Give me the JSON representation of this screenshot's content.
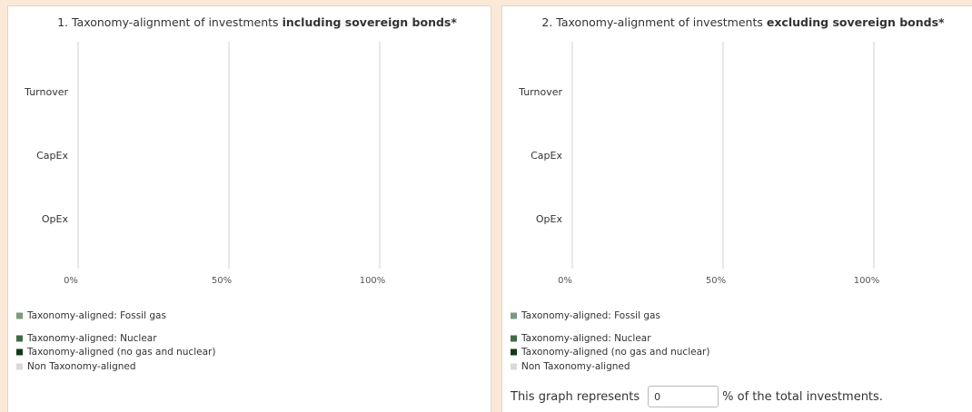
{
  "chart_data": [
    {
      "type": "bar",
      "orientation": "horizontal",
      "stacked": true,
      "title": [
        "1. Taxonomy-alignment of investments",
        "including sovereign bonds*"
      ],
      "categories": [
        "Turnover",
        "CapEx",
        "OpEx"
      ],
      "series": [
        {
          "name": "Taxonomy-aligned: Fossil gas",
          "color": "#7b9b7f",
          "values": [
            null,
            null,
            null
          ]
        },
        {
          "name": "Taxonomy-aligned: Nuclear",
          "color": "#3f6c45",
          "values": [
            null,
            null,
            null
          ]
        },
        {
          "name": "Taxonomy-aligned (no gas and nuclear)",
          "color": "#0f3b16",
          "values": [
            null,
            null,
            null
          ]
        },
        {
          "name": "Non Taxonomy-aligned",
          "color": "#d9d9d9",
          "values": [
            null,
            null,
            null
          ]
        }
      ],
      "xlim": [
        0,
        100
      ],
      "xticks": [
        {
          "value": 0,
          "label": "0%"
        },
        {
          "value": 50,
          "label": "50%"
        },
        {
          "value": 100,
          "label": "100%"
        }
      ],
      "grid": true
    },
    {
      "type": "bar",
      "orientation": "horizontal",
      "stacked": true,
      "title": [
        "2. Taxonomy-alignment of investments",
        "excluding sovereign bonds*"
      ],
      "categories": [
        "Turnover",
        "CapEx",
        "OpEx"
      ],
      "series": [
        {
          "name": "Taxonomy-aligned: Fossil gas",
          "color": "#7b9b7f",
          "values": [
            null,
            null,
            null
          ]
        },
        {
          "name": "Taxonomy-aligned: Nuclear",
          "color": "#3f6c45",
          "values": [
            null,
            null,
            null
          ]
        },
        {
          "name": "Taxonomy-aligned (no gas and nuclear)",
          "color": "#0f3b16",
          "values": [
            null,
            null,
            null
          ]
        },
        {
          "name": "Non Taxonomy-aligned",
          "color": "#d9d9d9",
          "values": [
            null,
            null,
            null
          ]
        }
      ],
      "xlim": [
        0,
        100
      ],
      "xticks": [
        {
          "value": 0,
          "label": "0%"
        },
        {
          "value": 50,
          "label": "50%"
        },
        {
          "value": 100,
          "label": "100%"
        }
      ],
      "grid": true
    }
  ],
  "form": {
    "prefix": "This graph represents",
    "input_value": "0",
    "suffix": "% of the total investments."
  }
}
